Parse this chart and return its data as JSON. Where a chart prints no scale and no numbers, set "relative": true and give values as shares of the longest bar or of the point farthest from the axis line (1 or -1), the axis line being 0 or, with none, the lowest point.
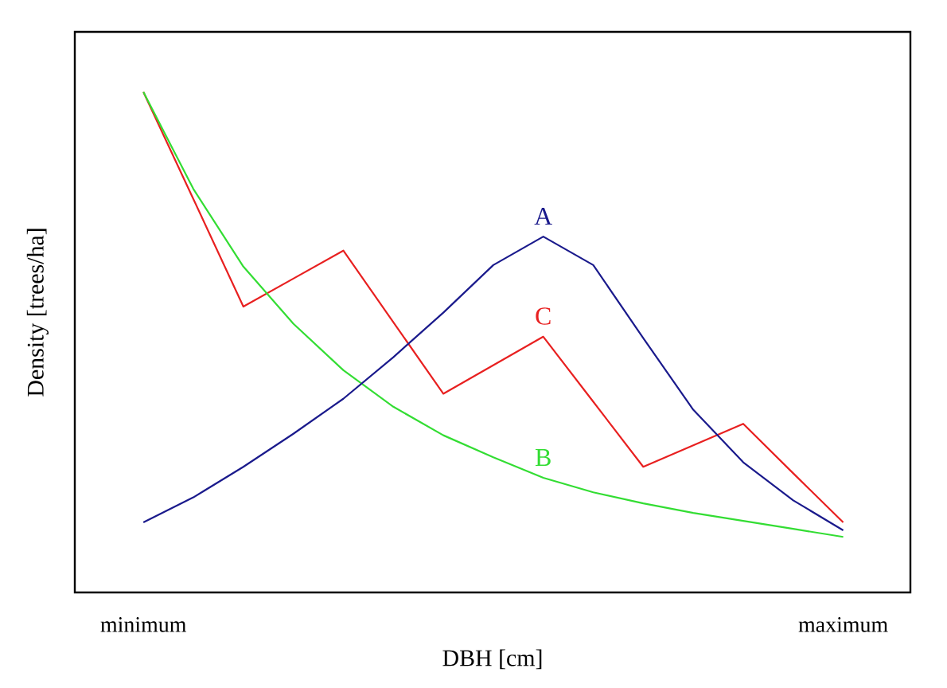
{
  "chart_data": {
    "type": "line",
    "relative": true,
    "xlabel": "DBH [cm]",
    "ylabel": "Density [trees/ha]",
    "categories": [
      "minimum",
      null,
      null,
      null,
      null,
      null,
      null,
      null,
      null,
      null,
      null,
      null,
      null,
      null,
      "maximum"
    ],
    "legend": false,
    "grid": false,
    "marker": "none",
    "line_style": "solid",
    "tick_labels": "x",
    "series": [
      {
        "name": "A",
        "color": "#1a1a8c",
        "values": [
          0.14,
          0.19,
          0.251,
          0.317,
          0.387,
          0.47,
          0.559,
          0.654,
          0.711,
          0.654,
          0.508,
          0.365,
          0.26,
          0.184,
          0.124
        ]
      },
      {
        "name": "B",
        "color": "#33dd33",
        "values": [
          1.0,
          0.806,
          0.651,
          0.537,
          0.444,
          0.371,
          0.314,
          0.27,
          0.229,
          0.2,
          0.178,
          0.159,
          0.143,
          0.127,
          0.111
        ]
      },
      {
        "name": "C",
        "color": "#e82020",
        "values": [
          1.0,
          0.786,
          0.571,
          0.627,
          0.683,
          0.54,
          0.397,
          0.454,
          0.511,
          0.381,
          0.251,
          0.294,
          0.337,
          0.238,
          0.14
        ]
      }
    ]
  }
}
